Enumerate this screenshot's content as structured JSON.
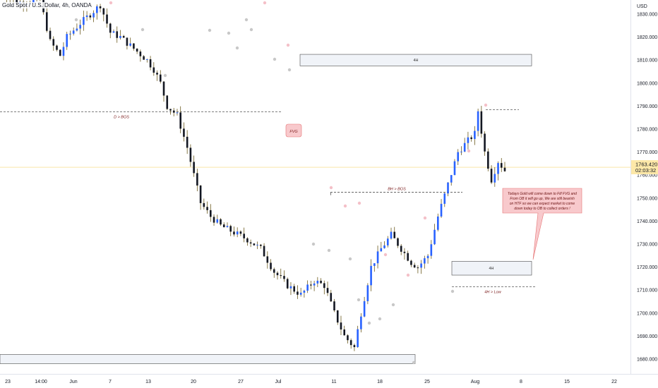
{
  "header": {
    "symbol_title": "Gold Spot / U.S. Dollar, 4h, OANDA"
  },
  "price_axis": {
    "currency": "USD",
    "current_price": "1763.420",
    "countdown": "02:03:32"
  },
  "colors": {
    "up_candle": "#2962ff",
    "down_candle": "#131722",
    "wick": "#6b5a1e",
    "zone_fill": "#f0f3f8",
    "callout_fill": "#f8c9cc",
    "callout_border": "#e57373",
    "price_line": "#f7d774",
    "dashed": "#333333"
  },
  "annotations": {
    "d_bos": "D > BOS",
    "fvg": "FVG",
    "zone_4h_top": "4H",
    "bh_bos": "BH > BOS",
    "zone_4h_mid": "4H",
    "h4_low": "4H > Low",
    "callout_text": [
      "Todays Gold will come down to Fill FVG and",
      "From OB it will go up, We are still bearish",
      "on HTF so we can expect market to come",
      "down today to OB to collect orders !"
    ]
  },
  "chart_data": {
    "type": "candlestick",
    "title": "Gold Spot / U.S. Dollar, 4h, OANDA",
    "ylim": [
      1676,
      1844
    ],
    "y_ticks": [
      1680,
      1690,
      1700,
      1710,
      1720,
      1730,
      1740,
      1750,
      1760,
      1770,
      1780,
      1790,
      1800,
      1810,
      1820,
      1830
    ],
    "y_tick_labels": [
      "1680.000",
      "1690.000",
      "1700.000",
      "1710.000",
      "1720.000",
      "1730.000",
      "1740.000",
      "1750.000",
      "1760.000",
      "1770.000",
      "1780.000",
      "1790.000",
      "1800.000",
      "1810.000",
      "1820.000",
      "1830.000"
    ],
    "x_tick_labels": [
      "23",
      "14:00",
      "Jun",
      "7",
      "13",
      "20",
      "27",
      "Jul",
      "11",
      "18",
      "25",
      "Aug",
      "8",
      "15",
      "22"
    ],
    "path_points": [
      [
        0,
        1840
      ],
      [
        5,
        1835
      ],
      [
        12,
        1836
      ],
      [
        15,
        1818
      ],
      [
        18,
        1812
      ],
      [
        20,
        1820
      ],
      [
        24,
        1826
      ],
      [
        27,
        1830
      ],
      [
        30,
        1834
      ],
      [
        33,
        1822
      ],
      [
        36,
        1820
      ],
      [
        40,
        1815
      ],
      [
        44,
        1810
      ],
      [
        46,
        1806
      ],
      [
        48,
        1800
      ],
      [
        50,
        1790
      ],
      [
        53,
        1786
      ],
      [
        56,
        1772
      ],
      [
        58,
        1760
      ],
      [
        60,
        1748
      ],
      [
        63,
        1742
      ],
      [
        66,
        1738
      ],
      [
        70,
        1735
      ],
      [
        74,
        1732
      ],
      [
        78,
        1728
      ],
      [
        82,
        1718
      ],
      [
        86,
        1712
      ],
      [
        90,
        1708
      ],
      [
        94,
        1714
      ],
      [
        97,
        1712
      ],
      [
        100,
        1700
      ],
      [
        103,
        1690
      ],
      [
        106,
        1685
      ],
      [
        108,
        1700
      ],
      [
        111,
        1720
      ],
      [
        114,
        1728
      ],
      [
        117,
        1734
      ],
      [
        120,
        1728
      ],
      [
        123,
        1722
      ],
      [
        125,
        1720
      ],
      [
        128,
        1725
      ],
      [
        131,
        1742
      ],
      [
        134,
        1756
      ],
      [
        137,
        1770
      ],
      [
        140,
        1775
      ],
      [
        142,
        1778
      ],
      [
        143,
        1788
      ],
      [
        145,
        1770
      ],
      [
        147,
        1758
      ],
      [
        149,
        1766
      ],
      [
        151,
        1762
      ]
    ],
    "levels": {
      "current": 1763.42,
      "d_bos": 1787.5,
      "bh_bos": 1752.5,
      "h4_low": 1711.5,
      "high_marker": 1788.5,
      "zone_top": [
        1807.5,
        1812.5
      ],
      "zone_mid": [
        1716.5,
        1722.5
      ],
      "zone_bottom": [
        1678,
        1682
      ]
    }
  }
}
